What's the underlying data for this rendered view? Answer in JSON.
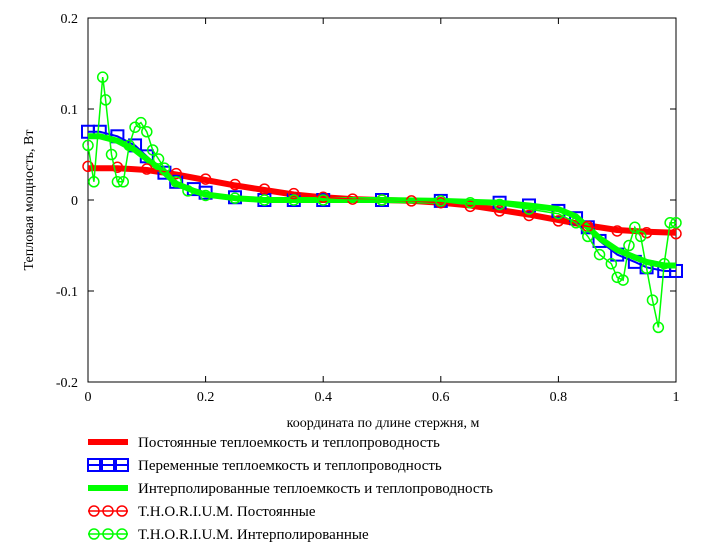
{
  "chart_data": {
    "type": "line",
    "title": "",
    "xlabel": "координата по длине стержня, м",
    "ylabel": "Тепловая мощность, Вт",
    "xlim": [
      0,
      1
    ],
    "ylim": [
      -0.2,
      0.2
    ],
    "x_ticks": [
      "0",
      "0.2",
      "0.4",
      "0.6",
      "0.8",
      "1"
    ],
    "y_ticks": [
      "0.2",
      "0.1",
      "0",
      "-0.1",
      "-0.2"
    ],
    "x_tick_values": [
      0,
      0.2,
      0.4,
      0.6,
      0.8,
      1
    ],
    "y_tick_values": [
      0.2,
      0.1,
      0,
      -0.1,
      -0.2
    ],
    "grid": false,
    "legend_position": "bottom",
    "series": [
      {
        "name": "Постоянные теплоемкость и теплопроводность",
        "color": "#ff0000",
        "style": "thick-line",
        "x": [
          0.0,
          0.05,
          0.1,
          0.15,
          0.2,
          0.25,
          0.3,
          0.35,
          0.4,
          0.45,
          0.5,
          0.55,
          0.6,
          0.65,
          0.7,
          0.75,
          0.8,
          0.85,
          0.9,
          0.95,
          1.0
        ],
        "y": [
          0.035,
          0.035,
          0.033,
          0.028,
          0.022,
          0.016,
          0.011,
          0.006,
          0.003,
          0.001,
          0.0,
          -0.001,
          -0.003,
          -0.006,
          -0.011,
          -0.016,
          -0.022,
          -0.028,
          -0.033,
          -0.035,
          -0.036
        ]
      },
      {
        "name": "Переменные теплоемкость и теплопроводность",
        "color": "#0000ff",
        "style": "squares",
        "x": [
          0.0,
          0.02,
          0.05,
          0.08,
          0.1,
          0.13,
          0.15,
          0.18,
          0.2,
          0.25,
          0.3,
          0.35,
          0.4,
          0.5,
          0.6,
          0.7,
          0.75,
          0.8,
          0.83,
          0.85,
          0.87,
          0.9,
          0.93,
          0.95,
          0.98,
          1.0
        ],
        "y": [
          0.075,
          0.075,
          0.07,
          0.06,
          0.048,
          0.03,
          0.02,
          0.012,
          0.008,
          0.003,
          0.0,
          0.0,
          0.0,
          0.0,
          -0.001,
          -0.003,
          -0.006,
          -0.012,
          -0.02,
          -0.03,
          -0.045,
          -0.06,
          -0.068,
          -0.074,
          -0.078,
          -0.078
        ]
      },
      {
        "name": "Интерполированные теплоемкость и теплопроводность",
        "color": "#00ff00",
        "style": "thick-line",
        "x": [
          0.0,
          0.02,
          0.05,
          0.08,
          0.1,
          0.13,
          0.15,
          0.18,
          0.2,
          0.25,
          0.3,
          0.35,
          0.4,
          0.5,
          0.6,
          0.7,
          0.75,
          0.8,
          0.83,
          0.85,
          0.87,
          0.9,
          0.93,
          0.95,
          0.98,
          1.0
        ],
        "y": [
          0.07,
          0.07,
          0.065,
          0.055,
          0.045,
          0.03,
          0.018,
          0.01,
          0.006,
          0.002,
          0.0,
          0.0,
          0.0,
          0.0,
          -0.001,
          -0.003,
          -0.006,
          -0.01,
          -0.018,
          -0.03,
          -0.042,
          -0.055,
          -0.063,
          -0.068,
          -0.072,
          -0.072
        ]
      },
      {
        "name": "T.H.O.R.I.U.M. Постоянные",
        "color": "#ff0000",
        "style": "circles-line",
        "x": [
          0.0,
          0.05,
          0.1,
          0.15,
          0.2,
          0.25,
          0.3,
          0.35,
          0.4,
          0.45,
          0.5,
          0.55,
          0.6,
          0.65,
          0.7,
          0.75,
          0.8,
          0.85,
          0.9,
          0.95,
          1.0
        ],
        "y": [
          0.037,
          0.036,
          0.034,
          0.029,
          0.023,
          0.017,
          0.012,
          0.007,
          0.003,
          0.001,
          0.0,
          -0.001,
          -0.003,
          -0.007,
          -0.012,
          -0.017,
          -0.023,
          -0.029,
          -0.034,
          -0.036,
          -0.037
        ]
      },
      {
        "name": "T.H.O.R.I.U.M. Интерполированные",
        "color": "#00ff00",
        "style": "circles-line",
        "x": [
          0.0,
          0.01,
          0.025,
          0.03,
          0.04,
          0.05,
          0.06,
          0.07,
          0.08,
          0.09,
          0.1,
          0.11,
          0.12,
          0.13,
          0.15,
          0.17,
          0.2,
          0.25,
          0.3,
          0.35,
          0.4,
          0.5,
          0.6,
          0.65,
          0.7,
          0.75,
          0.8,
          0.83,
          0.85,
          0.87,
          0.89,
          0.9,
          0.91,
          0.92,
          0.93,
          0.94,
          0.95,
          0.96,
          0.97,
          0.98,
          0.99,
          1.0
        ],
        "y": [
          0.06,
          0.02,
          0.135,
          0.11,
          0.05,
          0.02,
          0.02,
          0.06,
          0.08,
          0.085,
          0.075,
          0.055,
          0.045,
          0.035,
          0.02,
          0.01,
          0.005,
          0.002,
          0.0,
          0.0,
          0.0,
          0.0,
          -0.001,
          -0.003,
          -0.005,
          -0.01,
          -0.015,
          -0.025,
          -0.04,
          -0.06,
          -0.07,
          -0.085,
          -0.088,
          -0.05,
          -0.03,
          -0.04,
          -0.075,
          -0.11,
          -0.14,
          -0.07,
          -0.025,
          -0.025
        ]
      }
    ]
  }
}
